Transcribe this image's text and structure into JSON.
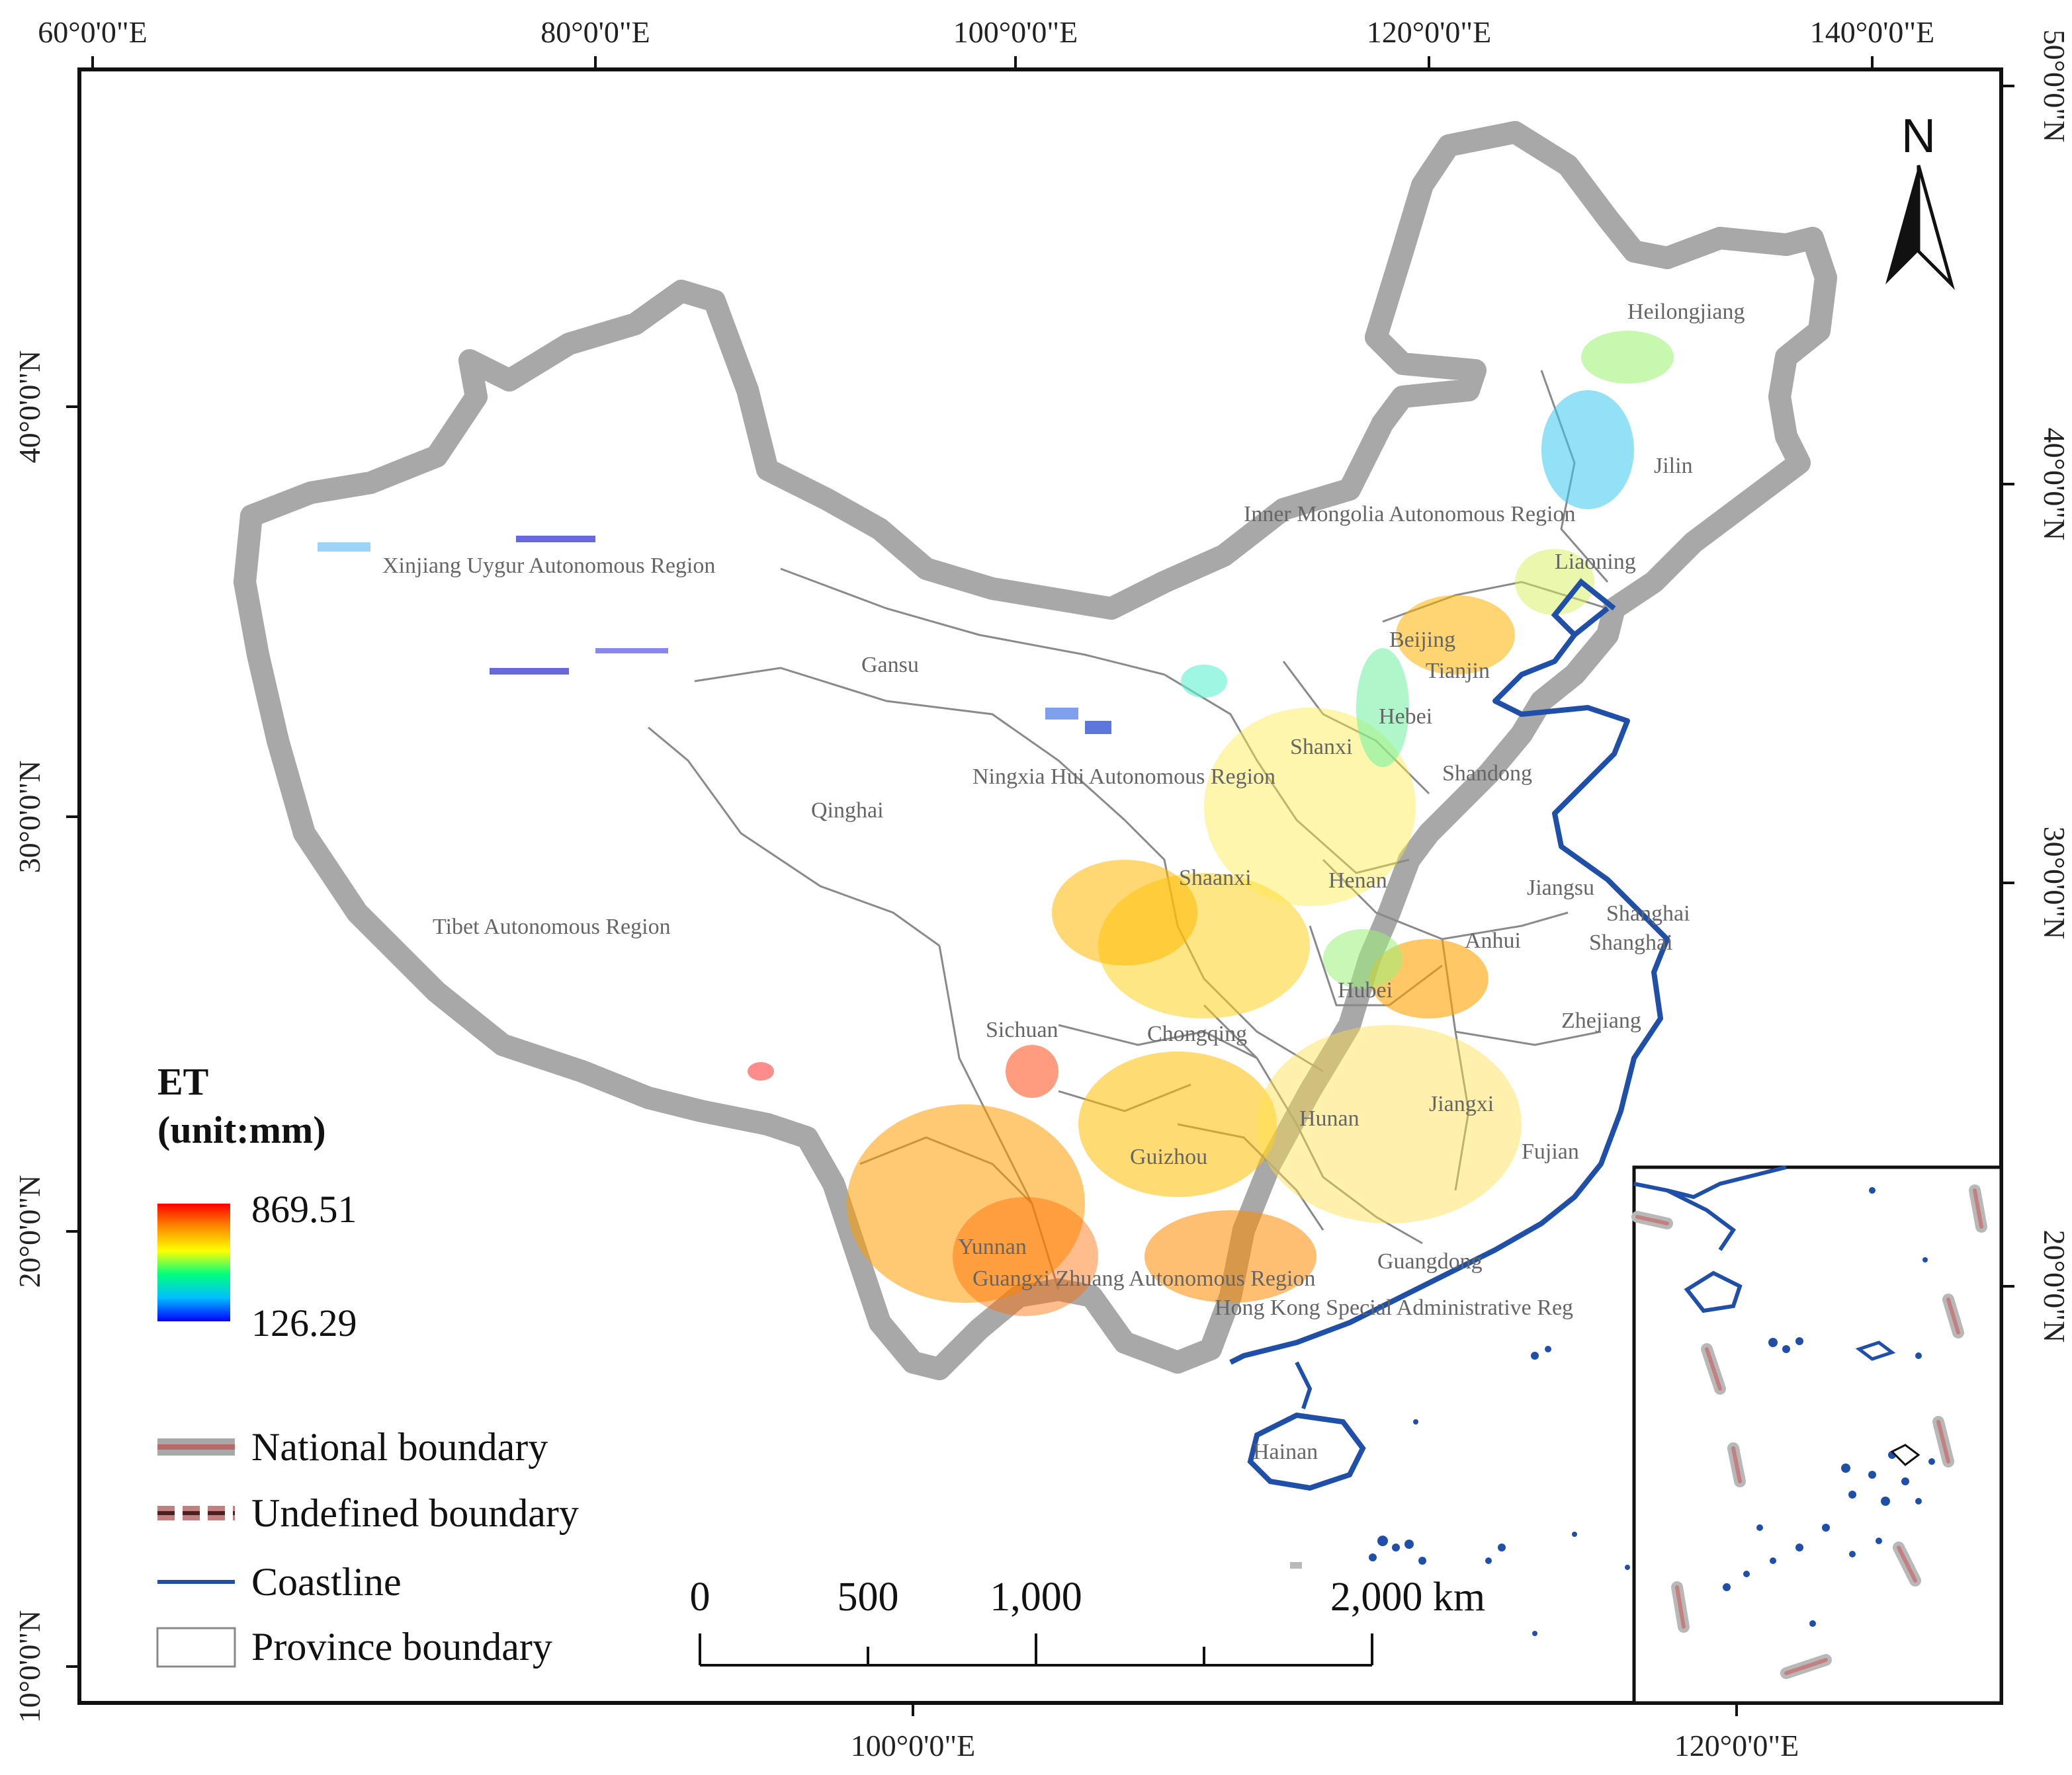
{
  "map": {
    "top_ticks": [
      "60°0'0\"E",
      "80°0'0\"E",
      "100°0'0\"E",
      "120°0'0\"E",
      "140°0'0\"E"
    ],
    "bottom_ticks": [
      "100°0'0\"E",
      "120°0'0\"E"
    ],
    "left_ticks": [
      "40°0'0\"N",
      "30°0'0\"N",
      "20°0'0\"N",
      "10°0'0\"N"
    ],
    "right_ticks": [
      "50°0'0\"N",
      "40°0'0\"N",
      "30°0'0\"N",
      "20°0'0\"N"
    ],
    "north_label": "N"
  },
  "provinces": [
    "Heilongjiang",
    "Jilin",
    "Inner Mongolia Autonomous Region",
    "Liaoning",
    "Xinjiang Uygur Autonomous Region",
    "Beijing",
    "Tianjin",
    "Gansu",
    "Hebei",
    "Shanxi",
    "Ningxia Hui Autonomous Region",
    "Shandong",
    "Qinghai",
    "Shaanxi",
    "Henan",
    "Jiangsu",
    "Shanghai",
    "Shanghai",
    "Tibet Autonomous Region",
    "Anhui",
    "Hubei",
    "Sichuan",
    "Chongqing",
    "Zhejiang",
    "Jiangxi",
    "Hunan",
    "Fujian",
    "Guizhou",
    "Yunnan",
    "Guangxi Zhuang Autonomous Region",
    "Guangdong",
    "Hong Kong Special Administrative Reg",
    "Hainan"
  ],
  "legend": {
    "title_line1": "ET",
    "title_line2": "(unit:mm)",
    "max_value": "869.51",
    "min_value": "126.29",
    "gradient_colors": [
      "#ff0000",
      "#ff8c00",
      "#ffff00",
      "#00ff7f",
      "#00bfff",
      "#0000ff"
    ],
    "items": [
      {
        "label": "National boundary",
        "color": "#8a8a8a",
        "inner_color": "#c48080"
      },
      {
        "label": "Undefined boundary",
        "color": "#c48080",
        "inner_color": "#4a2020"
      },
      {
        "label": "Coastline",
        "color": "#1f4fa8"
      },
      {
        "label": "Province boundary",
        "color": "#888888"
      }
    ]
  },
  "scale_bar": {
    "labels": [
      "0",
      "500",
      "1,000",
      "2,000 km"
    ]
  },
  "colors": {
    "national_boundary_outer": "#8a8a8a",
    "national_boundary_inner": "#c48080",
    "coastline": "#1f4fa8",
    "province_boundary": "#888888"
  }
}
